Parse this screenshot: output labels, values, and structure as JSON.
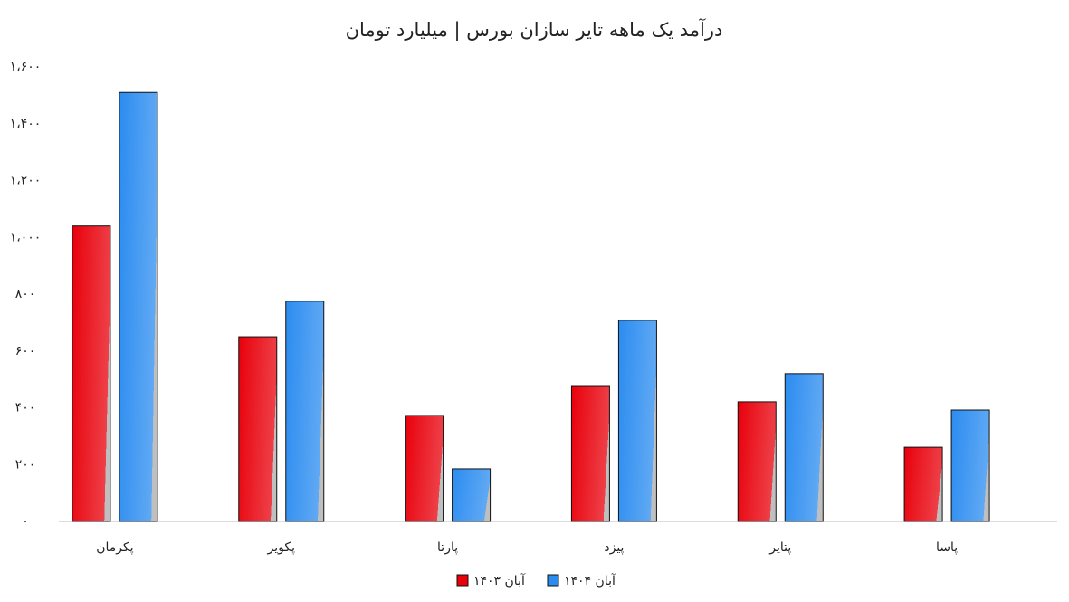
{
  "chart_data": {
    "type": "bar",
    "title": "درآمد یک ماهه تایر سازان بورس | میلیارد تومان",
    "categories": [
      "پکرمان",
      "پکویر",
      "پارتا",
      "پیزد",
      "پتایر",
      "پاسا"
    ],
    "series": [
      {
        "name": "آبان ۱۴۰۳",
        "color": "#e8000b",
        "values": [
          1040,
          650,
          373,
          478,
          421,
          261
        ]
      },
      {
        "name": "آبان ۱۴۰۴",
        "color": "#2b8cf0",
        "values": [
          1510,
          775,
          185,
          708,
          520,
          392
        ]
      }
    ],
    "ylim": [
      0,
      1600
    ],
    "yticks": [
      {
        "value": 0,
        "label": "۰"
      },
      {
        "value": 200,
        "label": "۲۰۰"
      },
      {
        "value": 400,
        "label": "۴۰۰"
      },
      {
        "value": 600,
        "label": "۶۰۰"
      },
      {
        "value": 800,
        "label": "۸۰۰"
      },
      {
        "value": 1000,
        "label": "۱،۰۰۰"
      },
      {
        "value": 1200,
        "label": "۱،۲۰۰"
      },
      {
        "value": 1400,
        "label": "۱،۴۰۰"
      },
      {
        "value": 1600,
        "label": "۱،۶۰۰"
      }
    ],
    "grid": false,
    "legend": "bottom"
  }
}
